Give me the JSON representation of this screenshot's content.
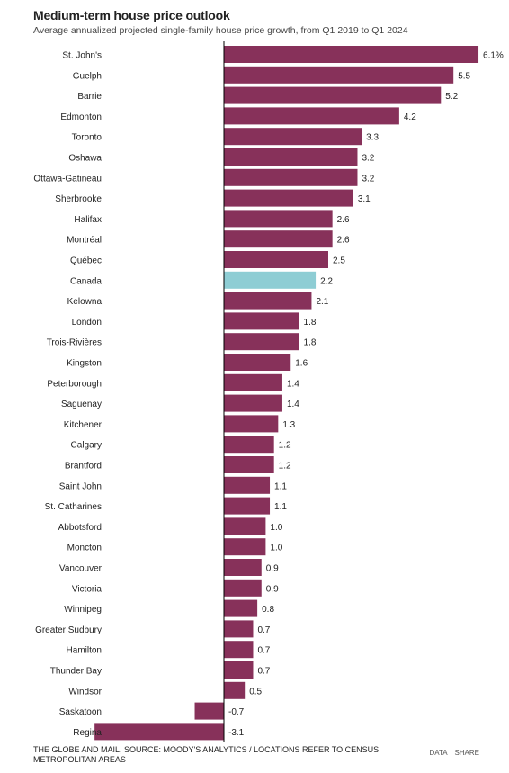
{
  "header": {
    "title": "Medium-term house price outlook",
    "subtitle": "Average annualized projected single-family house price growth, from Q1 2019 to Q1 2024"
  },
  "footer": {
    "source": "THE GLOBE AND MAIL, SOURCE: MOODY'S ANALYTICS / LOCATIONS REFER TO CENSUS METROPOLITAN AREAS",
    "data_link": "DATA",
    "share_link": "SHARE"
  },
  "colors": {
    "bar": "#87315a",
    "highlight": "#8ecdd4",
    "axis": "#000000"
  },
  "chart_data": {
    "type": "bar",
    "orientation": "horizontal",
    "title": "Medium-term house price outlook",
    "subtitle": "Average annualized projected single-family house price growth, from Q1 2019 to Q1 2024",
    "highlight_category": "Canada",
    "xlim": [
      -3.1,
      6.1
    ],
    "categories": [
      "St. John's",
      "Guelph",
      "Barrie",
      "Edmonton",
      "Toronto",
      "Oshawa",
      "Ottawa-Gatineau",
      "Sherbrooke",
      "Halifax",
      "Montréal",
      "Québec",
      "Canada",
      "Kelowna",
      "London",
      "Trois-Rivières",
      "Kingston",
      "Peterborough",
      "Saguenay",
      "Kitchener",
      "Calgary",
      "Brantford",
      "Saint John",
      "St. Catharines",
      "Abbotsford",
      "Moncton",
      "Vancouver",
      "Victoria",
      "Winnipeg",
      "Greater Sudbury",
      "Hamilton",
      "Thunder Bay",
      "Windsor",
      "Saskatoon",
      "Regina"
    ],
    "values": [
      6.1,
      5.5,
      5.2,
      4.2,
      3.3,
      3.2,
      3.2,
      3.1,
      2.6,
      2.6,
      2.5,
      2.2,
      2.1,
      1.8,
      1.8,
      1.6,
      1.4,
      1.4,
      1.3,
      1.2,
      1.2,
      1.1,
      1.1,
      1.0,
      1.0,
      0.9,
      0.9,
      0.8,
      0.7,
      0.7,
      0.7,
      0.5,
      -0.7,
      -3.1
    ],
    "data_labels": [
      "6.1%",
      "5.5",
      "5.2",
      "4.2",
      "3.3",
      "3.2",
      "3.2",
      "3.1",
      "2.6",
      "2.6",
      "2.5",
      "2.2",
      "2.1",
      "1.8",
      "1.8",
      "1.6",
      "1.4",
      "1.4",
      "1.3",
      "1.2",
      "1.2",
      "1.1",
      "1.1",
      "1.0",
      "1.0",
      "0.9",
      "0.9",
      "0.8",
      "0.7",
      "0.7",
      "0.7",
      "0.5",
      "-0.7",
      "-3.1"
    ]
  }
}
